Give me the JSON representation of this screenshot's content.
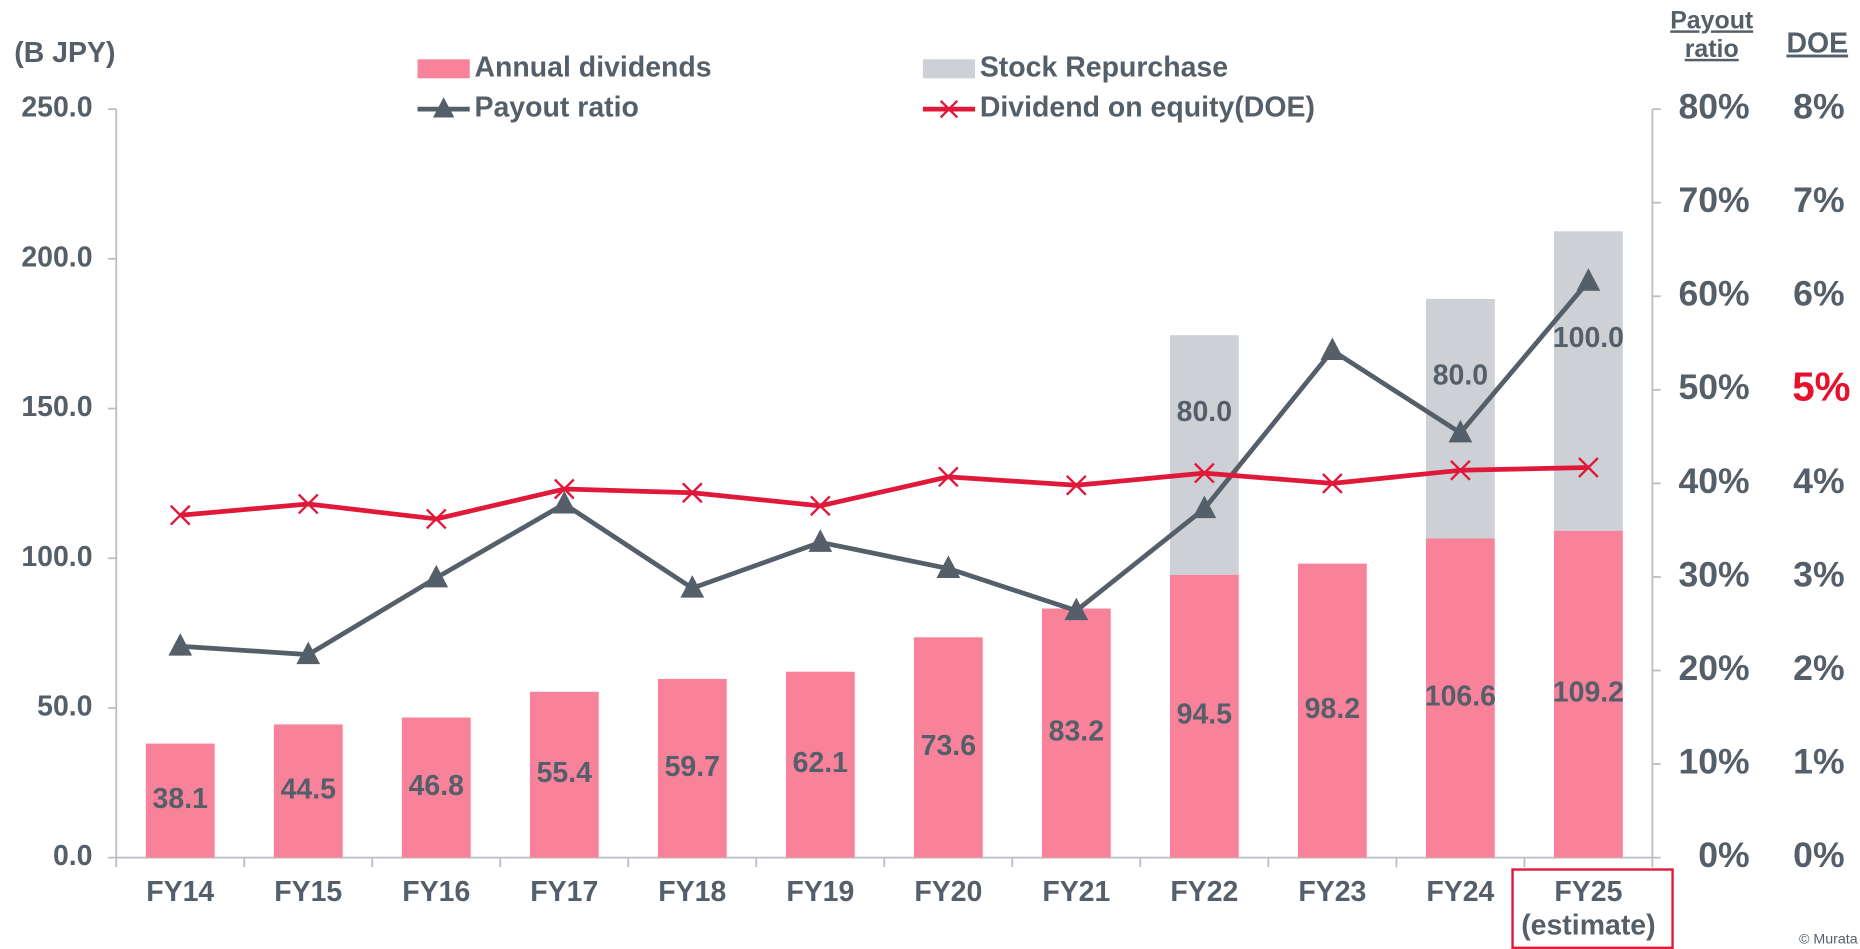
{
  "chart_data": {
    "type": "bar",
    "stacked": true,
    "y_axis_label": "(B JPY)",
    "y2_axis_label": "Payout\nratio",
    "y3_axis_label": "DOE",
    "categories": [
      "FY14",
      "FY15",
      "FY16",
      "FY17",
      "FY18",
      "FY19",
      "FY20",
      "FY21",
      "FY22",
      "FY23",
      "FY24",
      "FY25\n(estimate)"
    ],
    "highlight_category": 11,
    "series": [
      {
        "name": "Annual dividends",
        "type": "bar",
        "color": "#f7829a",
        "values": [
          38.1,
          44.5,
          46.8,
          55.4,
          59.7,
          62.1,
          73.6,
          83.2,
          94.5,
          98.2,
          106.6,
          109.2
        ]
      },
      {
        "name": "Stock Repurchase",
        "type": "bar",
        "color": "#cdd1d5",
        "values": [
          null,
          null,
          null,
          null,
          null,
          null,
          null,
          null,
          80,
          null,
          80,
          100
        ],
        "value_labels": [
          null,
          null,
          null,
          null,
          null,
          null,
          null,
          null,
          "80.0",
          null,
          "80.0",
          "100.0"
        ]
      },
      {
        "name": "Payout ratio",
        "type": "line",
        "marker": "triangle",
        "axis": "y2",
        "color": "#555f69",
        "values": [
          22.6,
          21.7,
          29.9,
          37.8,
          28.8,
          33.7,
          30.9,
          26.4,
          37.3,
          54.2,
          45.4,
          61.6
        ]
      },
      {
        "name": "Dividend on equity(DOE)",
        "type": "line",
        "marker": "cross",
        "axis": "y3",
        "color": "#e0193a",
        "values": [
          3.66,
          3.78,
          3.62,
          3.94,
          3.9,
          3.76,
          4.07,
          3.98,
          4.11,
          4.0,
          4.14,
          4.17
        ]
      }
    ],
    "ylim": [
      0,
      250
    ],
    "yticks": [
      {
        "value": 0,
        "label": "0.0"
      },
      {
        "value": 50,
        "label": "50.0"
      },
      {
        "value": 100,
        "label": "100.0"
      },
      {
        "value": 150,
        "label": "150.0"
      },
      {
        "value": 200,
        "label": "200.0"
      },
      {
        "value": 250,
        "label": "250.0"
      }
    ],
    "y2lim": [
      0,
      80
    ],
    "y2ticks": [
      {
        "value": 0,
        "label": "0%"
      },
      {
        "value": 10,
        "label": "10%"
      },
      {
        "value": 20,
        "label": "20%"
      },
      {
        "value": 30,
        "label": "30%"
      },
      {
        "value": 40,
        "label": "40%"
      },
      {
        "value": 50,
        "label": "50%"
      },
      {
        "value": 60,
        "label": "60%"
      },
      {
        "value": 70,
        "label": "70%"
      },
      {
        "value": 80,
        "label": "80%"
      }
    ],
    "y3lim": [
      0,
      8
    ],
    "y3ticks": [
      {
        "value": 0,
        "label": "0%"
      },
      {
        "value": 1,
        "label": "1%"
      },
      {
        "value": 2,
        "label": "2%"
      },
      {
        "value": 3,
        "label": "3%"
      },
      {
        "value": 4,
        "label": "4%"
      },
      {
        "value": 5,
        "label": "5%",
        "color": "#e8112d"
      },
      {
        "value": 6,
        "label": "6%"
      },
      {
        "value": 7,
        "label": "7%"
      },
      {
        "value": 8,
        "label": "8%"
      }
    ],
    "grid": false,
    "copyright": "© Murata"
  }
}
